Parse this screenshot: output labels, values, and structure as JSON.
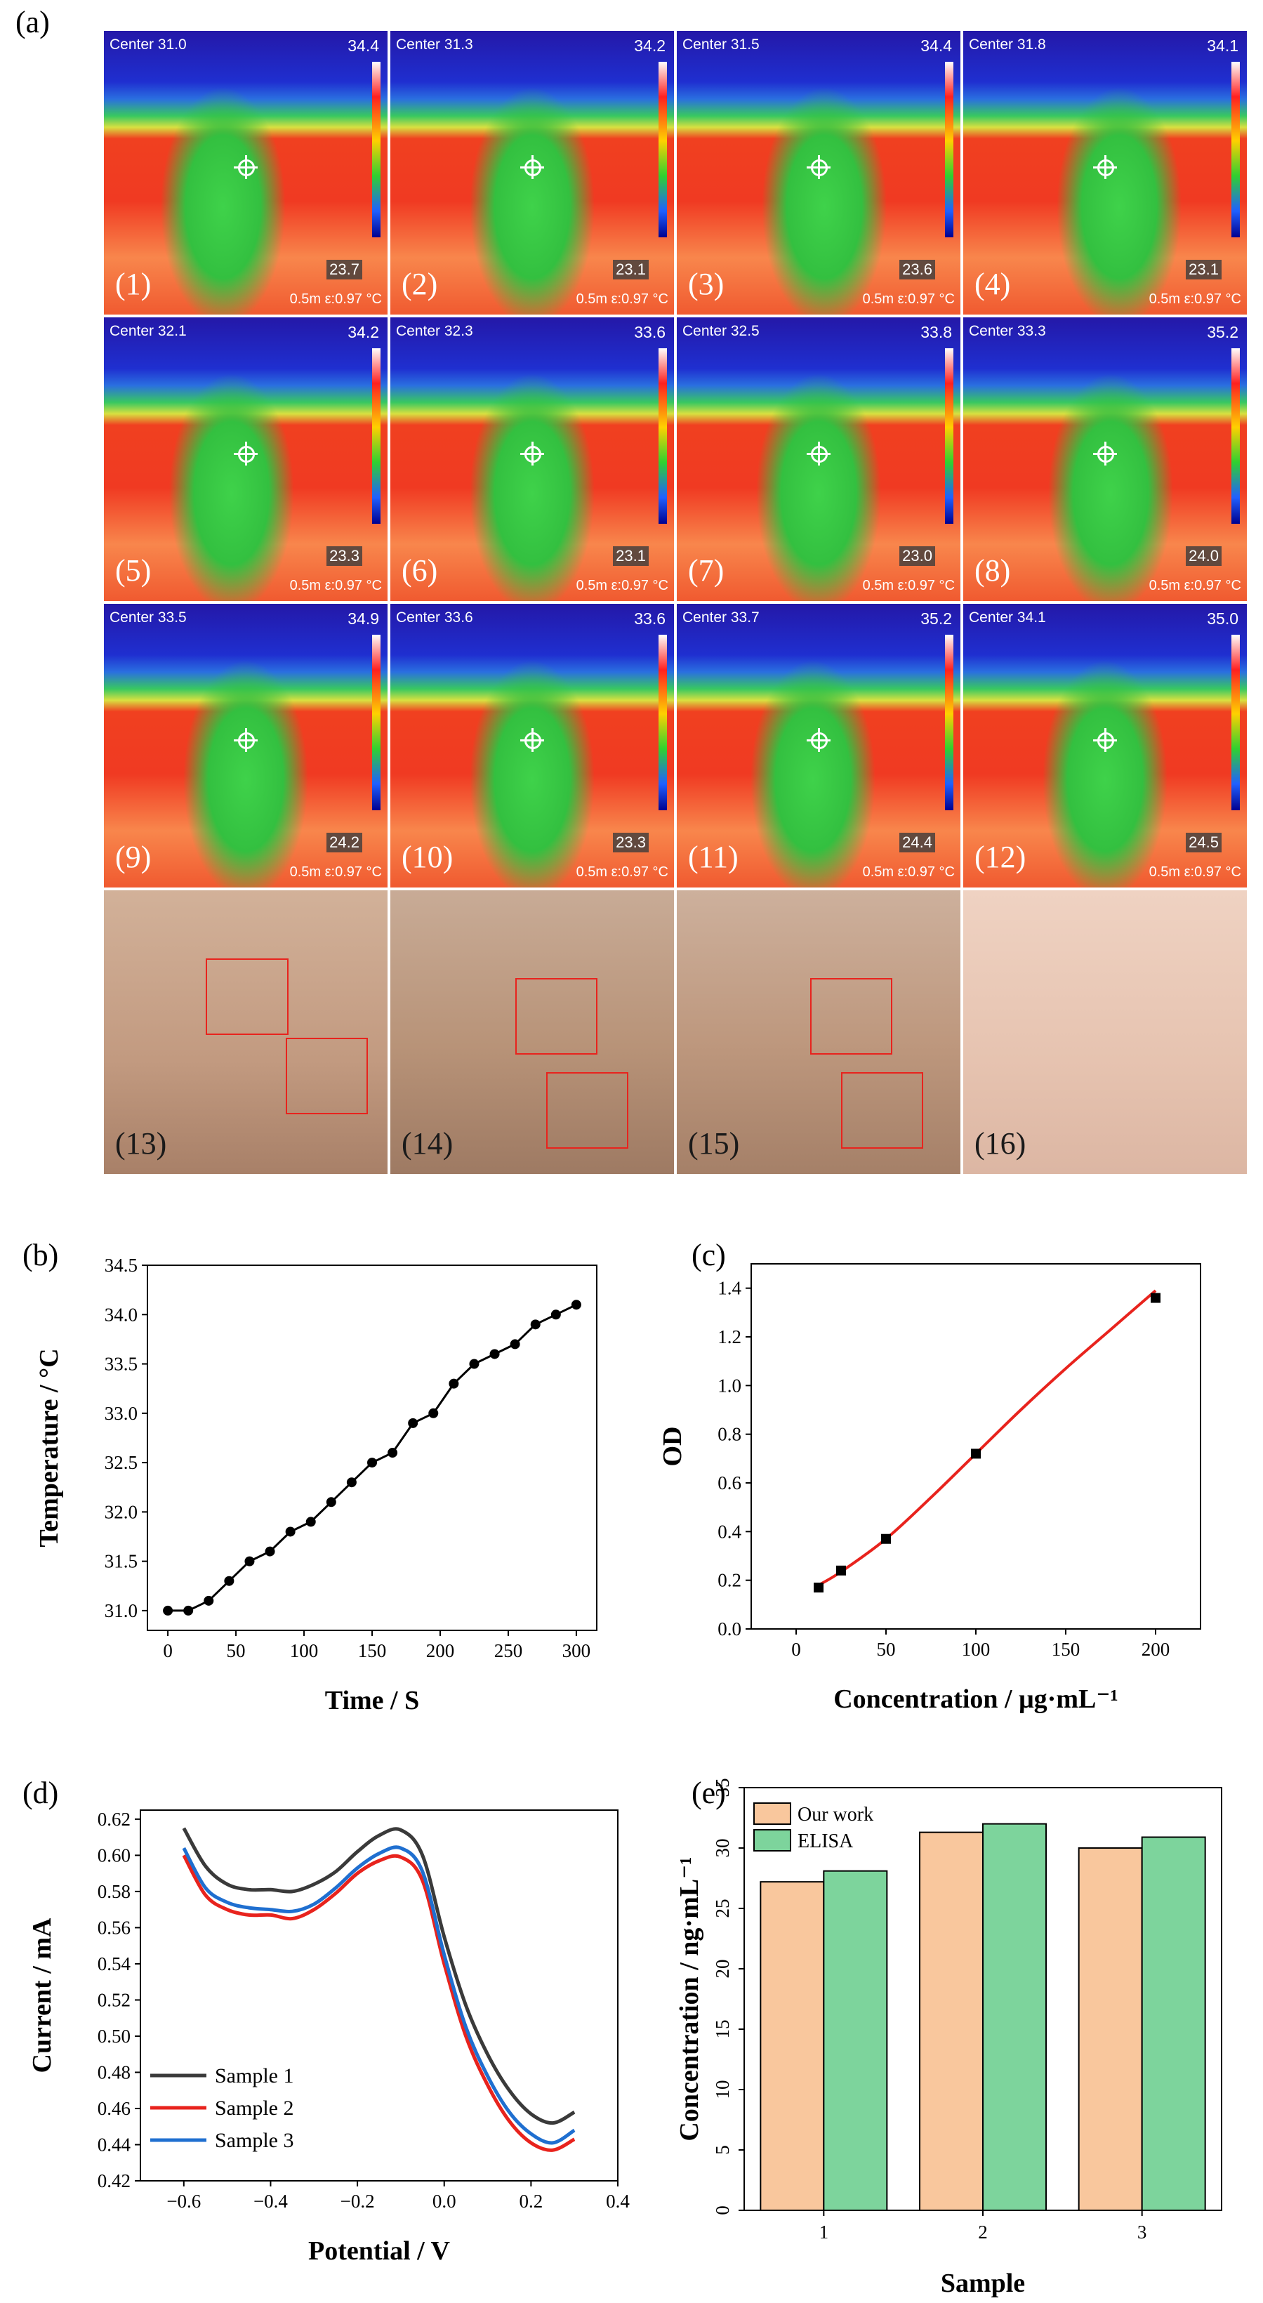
{
  "panel_labels": {
    "a": "(a)",
    "b": "(b)",
    "c": "(c)",
    "d": "(d)",
    "e": "(e)"
  },
  "thermal_images": [
    {
      "num": "(1)",
      "center": "Center 31.0",
      "max": "34.4",
      "min": "23.7",
      "info": "0.5m  ε:0.97  °C"
    },
    {
      "num": "(2)",
      "center": "Center 31.3",
      "max": "34.2",
      "min": "23.1",
      "info": "0.5m  ε:0.97  °C"
    },
    {
      "num": "(3)",
      "center": "Center 31.5",
      "max": "34.4",
      "min": "23.6",
      "info": "0.5m  ε:0.97  °C"
    },
    {
      "num": "(4)",
      "center": "Center 31.8",
      "max": "34.1",
      "min": "23.1",
      "info": "0.5m  ε:0.97  °C"
    },
    {
      "num": "(5)",
      "center": "Center 32.1",
      "max": "34.2",
      "min": "23.3",
      "info": "0.5m  ε:0.97  °C"
    },
    {
      "num": "(6)",
      "center": "Center 32.3",
      "max": "33.6",
      "min": "23.1",
      "info": "0.5m  ε:0.97  °C"
    },
    {
      "num": "(7)",
      "center": "Center 32.5",
      "max": "33.8",
      "min": "23.0",
      "info": "0.5m  ε:0.97  °C"
    },
    {
      "num": "(8)",
      "center": "Center 33.3",
      "max": "35.2",
      "min": "24.0",
      "info": "0.5m  ε:0.97  °C"
    },
    {
      "num": "(9)",
      "center": "Center 33.5",
      "max": "34.9",
      "min": "24.2",
      "info": "0.5m  ε:0.97  °C"
    },
    {
      "num": "(10)",
      "center": "Center 33.6",
      "max": "33.6",
      "min": "23.3",
      "info": "0.5m  ε:0.97  °C"
    },
    {
      "num": "(11)",
      "center": "Center 33.7",
      "max": "35.2",
      "min": "24.4",
      "info": "0.5m  ε:0.97  °C"
    },
    {
      "num": "(12)",
      "center": "Center 34.1",
      "max": "35.0",
      "min": "24.5",
      "info": "0.5m  ε:0.97  °C"
    }
  ],
  "photo_images": [
    {
      "num": "(13)"
    },
    {
      "num": "(14)"
    },
    {
      "num": "(15)"
    },
    {
      "num": "(16)"
    }
  ],
  "chart_data": [
    {
      "id": "b",
      "type": "line",
      "xlabel": "Time / S",
      "ylabel": "Temperature / °C",
      "xlim": [
        -15,
        315
      ],
      "ylim": [
        30.8,
        34.5
      ],
      "xticks": [
        0,
        50,
        100,
        150,
        200,
        250,
        300
      ],
      "yticks": [
        31.0,
        31.5,
        32.0,
        32.5,
        33.0,
        33.5,
        34.0,
        34.5
      ],
      "x": [
        0,
        15,
        30,
        45,
        60,
        75,
        90,
        105,
        120,
        135,
        150,
        165,
        180,
        195,
        210,
        225,
        240,
        255,
        270,
        285,
        300
      ],
      "y": [
        31.0,
        31.0,
        31.1,
        31.3,
        31.5,
        31.6,
        31.8,
        31.9,
        32.1,
        32.3,
        32.5,
        32.6,
        32.9,
        33.0,
        33.3,
        33.5,
        33.6,
        33.7,
        33.9,
        34.0,
        34.1
      ],
      "color": "#000000"
    },
    {
      "id": "c",
      "type": "scatter",
      "xlabel": "Concentration / μg·mL⁻¹",
      "ylabel": "OD",
      "xlim": [
        -25,
        225
      ],
      "ylim": [
        0,
        1.5
      ],
      "xticks": [
        0,
        50,
        100,
        150,
        200
      ],
      "yticks": [
        0.0,
        0.2,
        0.4,
        0.6,
        0.8,
        1.0,
        1.2,
        1.4
      ],
      "points": {
        "x": [
          12.5,
          25,
          50,
          100,
          200
        ],
        "y": [
          0.17,
          0.24,
          0.37,
          0.72,
          1.36
        ]
      },
      "fit": {
        "x": [
          12.5,
          25,
          50,
          75,
          100,
          125,
          150,
          175,
          200
        ],
        "y": [
          0.18,
          0.235,
          0.37,
          0.54,
          0.72,
          0.9,
          1.07,
          1.23,
          1.39
        ],
        "color": "#e8231d"
      }
    },
    {
      "id": "d",
      "type": "line",
      "xlabel": "Potential / V",
      "ylabel": "Current / mA",
      "xlim": [
        -0.7,
        0.4
      ],
      "ylim": [
        0.42,
        0.625
      ],
      "xticks": [
        -0.6,
        -0.4,
        -0.2,
        0.0,
        0.2,
        0.4
      ],
      "xtick_labels": [
        "−0.6",
        "−0.4",
        "−0.2",
        "0.0",
        "0.2",
        "0.4"
      ],
      "yticks": [
        0.42,
        0.44,
        0.46,
        0.48,
        0.5,
        0.52,
        0.54,
        0.56,
        0.58,
        0.6,
        0.62
      ],
      "legend_position": "bottom-left",
      "series": [
        {
          "name": "Sample 1",
          "color": "#3a3a3a",
          "x": [
            -0.6,
            -0.55,
            -0.5,
            -0.45,
            -0.4,
            -0.35,
            -0.3,
            -0.25,
            -0.2,
            -0.15,
            -0.1,
            -0.05,
            0.0,
            0.05,
            0.1,
            0.15,
            0.2,
            0.25,
            0.3
          ],
          "y": [
            0.615,
            0.594,
            0.584,
            0.581,
            0.581,
            0.58,
            0.584,
            0.591,
            0.602,
            0.611,
            0.614,
            0.6,
            0.555,
            0.517,
            0.49,
            0.47,
            0.457,
            0.452,
            0.458
          ]
        },
        {
          "name": "Sample 2",
          "color": "#e8231d",
          "x": [
            -0.6,
            -0.55,
            -0.5,
            -0.45,
            -0.4,
            -0.35,
            -0.3,
            -0.25,
            -0.2,
            -0.15,
            -0.1,
            -0.05,
            0.0,
            0.05,
            0.1,
            0.15,
            0.2,
            0.25,
            0.3
          ],
          "y": [
            0.6,
            0.578,
            0.57,
            0.567,
            0.567,
            0.565,
            0.57,
            0.579,
            0.59,
            0.597,
            0.599,
            0.586,
            0.54,
            0.5,
            0.473,
            0.453,
            0.441,
            0.437,
            0.443
          ]
        },
        {
          "name": "Sample 3",
          "color": "#1f6fd0",
          "x": [
            -0.6,
            -0.55,
            -0.5,
            -0.45,
            -0.4,
            -0.35,
            -0.3,
            -0.25,
            -0.2,
            -0.15,
            -0.1,
            -0.05,
            0.0,
            0.05,
            0.1,
            0.15,
            0.2,
            0.25,
            0.3
          ],
          "y": [
            0.604,
            0.582,
            0.574,
            0.571,
            0.57,
            0.569,
            0.573,
            0.582,
            0.593,
            0.601,
            0.604,
            0.591,
            0.545,
            0.505,
            0.478,
            0.458,
            0.446,
            0.441,
            0.448
          ]
        }
      ]
    },
    {
      "id": "e",
      "type": "bar",
      "xlabel": "Sample",
      "ylabel": "Concentration / ng·mL⁻¹",
      "ylim": [
        0,
        35
      ],
      "yticks": [
        0,
        5,
        10,
        15,
        20,
        25,
        30,
        35
      ],
      "ytick_labels": [
        "0",
        "5",
        "10",
        "15",
        "20",
        "25",
        "30",
        "35"
      ],
      "categories": [
        "1",
        "2",
        "3"
      ],
      "legend_position": "top-left",
      "series": [
        {
          "name": "Our work",
          "color": "#f9c79d",
          "values": [
            27.2,
            31.3,
            30.0
          ]
        },
        {
          "name": "ELISA",
          "color": "#7dd49c",
          "values": [
            28.1,
            32.0,
            30.9
          ]
        }
      ]
    }
  ]
}
